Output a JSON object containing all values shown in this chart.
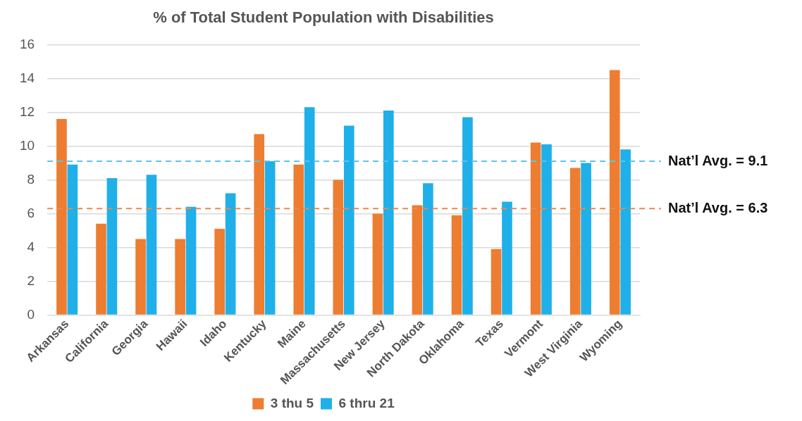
{
  "chart_data": {
    "type": "bar",
    "title": "% of Total Student Population with Disabilities",
    "categories": [
      "Arkansas",
      "California",
      "Georgia",
      "Hawaii",
      "Idaho",
      "Kentucky",
      "Maine",
      "Massachusetts",
      "New Jersey",
      "North Dakota",
      "Oklahoma",
      "Texas",
      "Vermont",
      "West Virginia",
      "Wyoming"
    ],
    "series": [
      {
        "name": "3 thu 5",
        "color": "#ed7d31",
        "values": [
          11.6,
          5.4,
          4.5,
          4.5,
          5.1,
          10.7,
          8.9,
          8.0,
          6.0,
          6.5,
          5.9,
          3.9,
          10.2,
          8.7,
          14.5
        ]
      },
      {
        "name": "6 thru 21",
        "color": "#1fb0e9",
        "values": [
          8.9,
          8.1,
          8.3,
          6.4,
          7.2,
          9.1,
          12.3,
          11.2,
          12.1,
          7.8,
          11.7,
          6.7,
          10.1,
          9.0,
          9.8
        ]
      }
    ],
    "ylim": [
      0,
      16
    ],
    "yticks": [
      0,
      2,
      4,
      6,
      8,
      10,
      12,
      14,
      16
    ],
    "grid": "y",
    "legend": "bottom",
    "ref_lines": [
      {
        "axis": "y",
        "value": 9.1,
        "label": "Nat’l Avg. = 9.1",
        "color": "#5bc4f0",
        "line_style": "dashed"
      },
      {
        "axis": "y",
        "value": 6.3,
        "label": "Nat’l Avg. = 6.3",
        "color": "#f0864a",
        "line_style": "dashed"
      }
    ]
  }
}
